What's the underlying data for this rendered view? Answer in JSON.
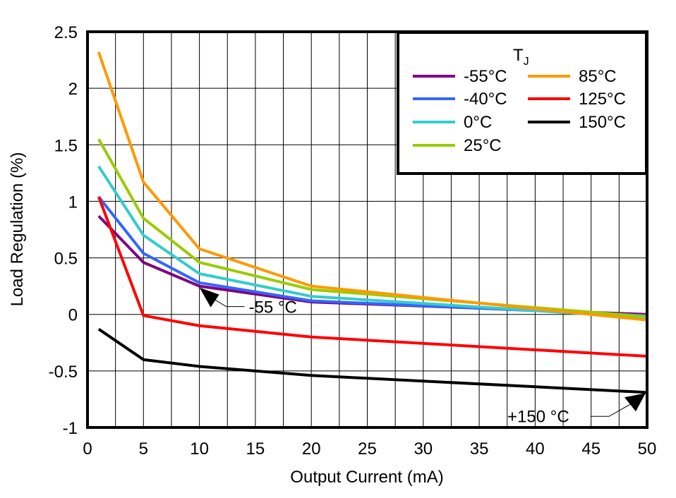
{
  "chart_data": {
    "type": "line",
    "title": "",
    "xlabel": "Output Current (mA)",
    "ylabel": "Load Regulation (%)",
    "xlim": [
      0,
      50
    ],
    "ylim": [
      -1,
      2.5
    ],
    "xticks": [
      0,
      5,
      10,
      15,
      20,
      25,
      30,
      35,
      40,
      45,
      50
    ],
    "yticks": [
      -1,
      -0.5,
      0,
      0.5,
      1,
      1.5,
      2,
      2.5
    ],
    "xtick_labels": [
      "0",
      "5",
      "10",
      "15",
      "20",
      "25",
      "30",
      "35",
      "40",
      "45",
      "50"
    ],
    "ytick_labels": [
      "-1",
      "-0.5",
      "0",
      "0.5",
      "1",
      "1.5",
      "2",
      "2.5"
    ],
    "grid": true,
    "legend": {
      "title": "T",
      "title_subscript": "J",
      "placement": "top-right"
    },
    "x": [
      1,
      5,
      10,
      20,
      50
    ],
    "series": [
      {
        "name": "-55°C",
        "color": "#800080",
        "values": [
          0.87,
          0.46,
          0.25,
          0.11,
          0.0
        ]
      },
      {
        "name": "-40°C",
        "color": "#3366ff",
        "values": [
          1.04,
          0.54,
          0.28,
          0.12,
          -0.01
        ]
      },
      {
        "name": "0°C",
        "color": "#33cccc",
        "values": [
          1.31,
          0.7,
          0.36,
          0.16,
          -0.03
        ]
      },
      {
        "name": "25°C",
        "color": "#99cc00",
        "values": [
          1.55,
          0.85,
          0.46,
          0.22,
          -0.02
        ]
      },
      {
        "name": "85°C",
        "color": "#ff9900",
        "values": [
          2.32,
          1.17,
          0.58,
          0.25,
          -0.05
        ]
      },
      {
        "name": "125°C",
        "color": "#ff0000",
        "values": [
          1.04,
          -0.01,
          -0.1,
          -0.2,
          -0.37
        ]
      },
      {
        "name": "150°C",
        "color": "#000000",
        "values": [
          -0.13,
          -0.4,
          -0.46,
          -0.54,
          -0.69
        ]
      }
    ],
    "annotations": [
      {
        "text": "-55 °C",
        "x": 10,
        "y": 0.25
      },
      {
        "text": "+150 °C",
        "x": 50,
        "y": -0.69
      }
    ]
  }
}
